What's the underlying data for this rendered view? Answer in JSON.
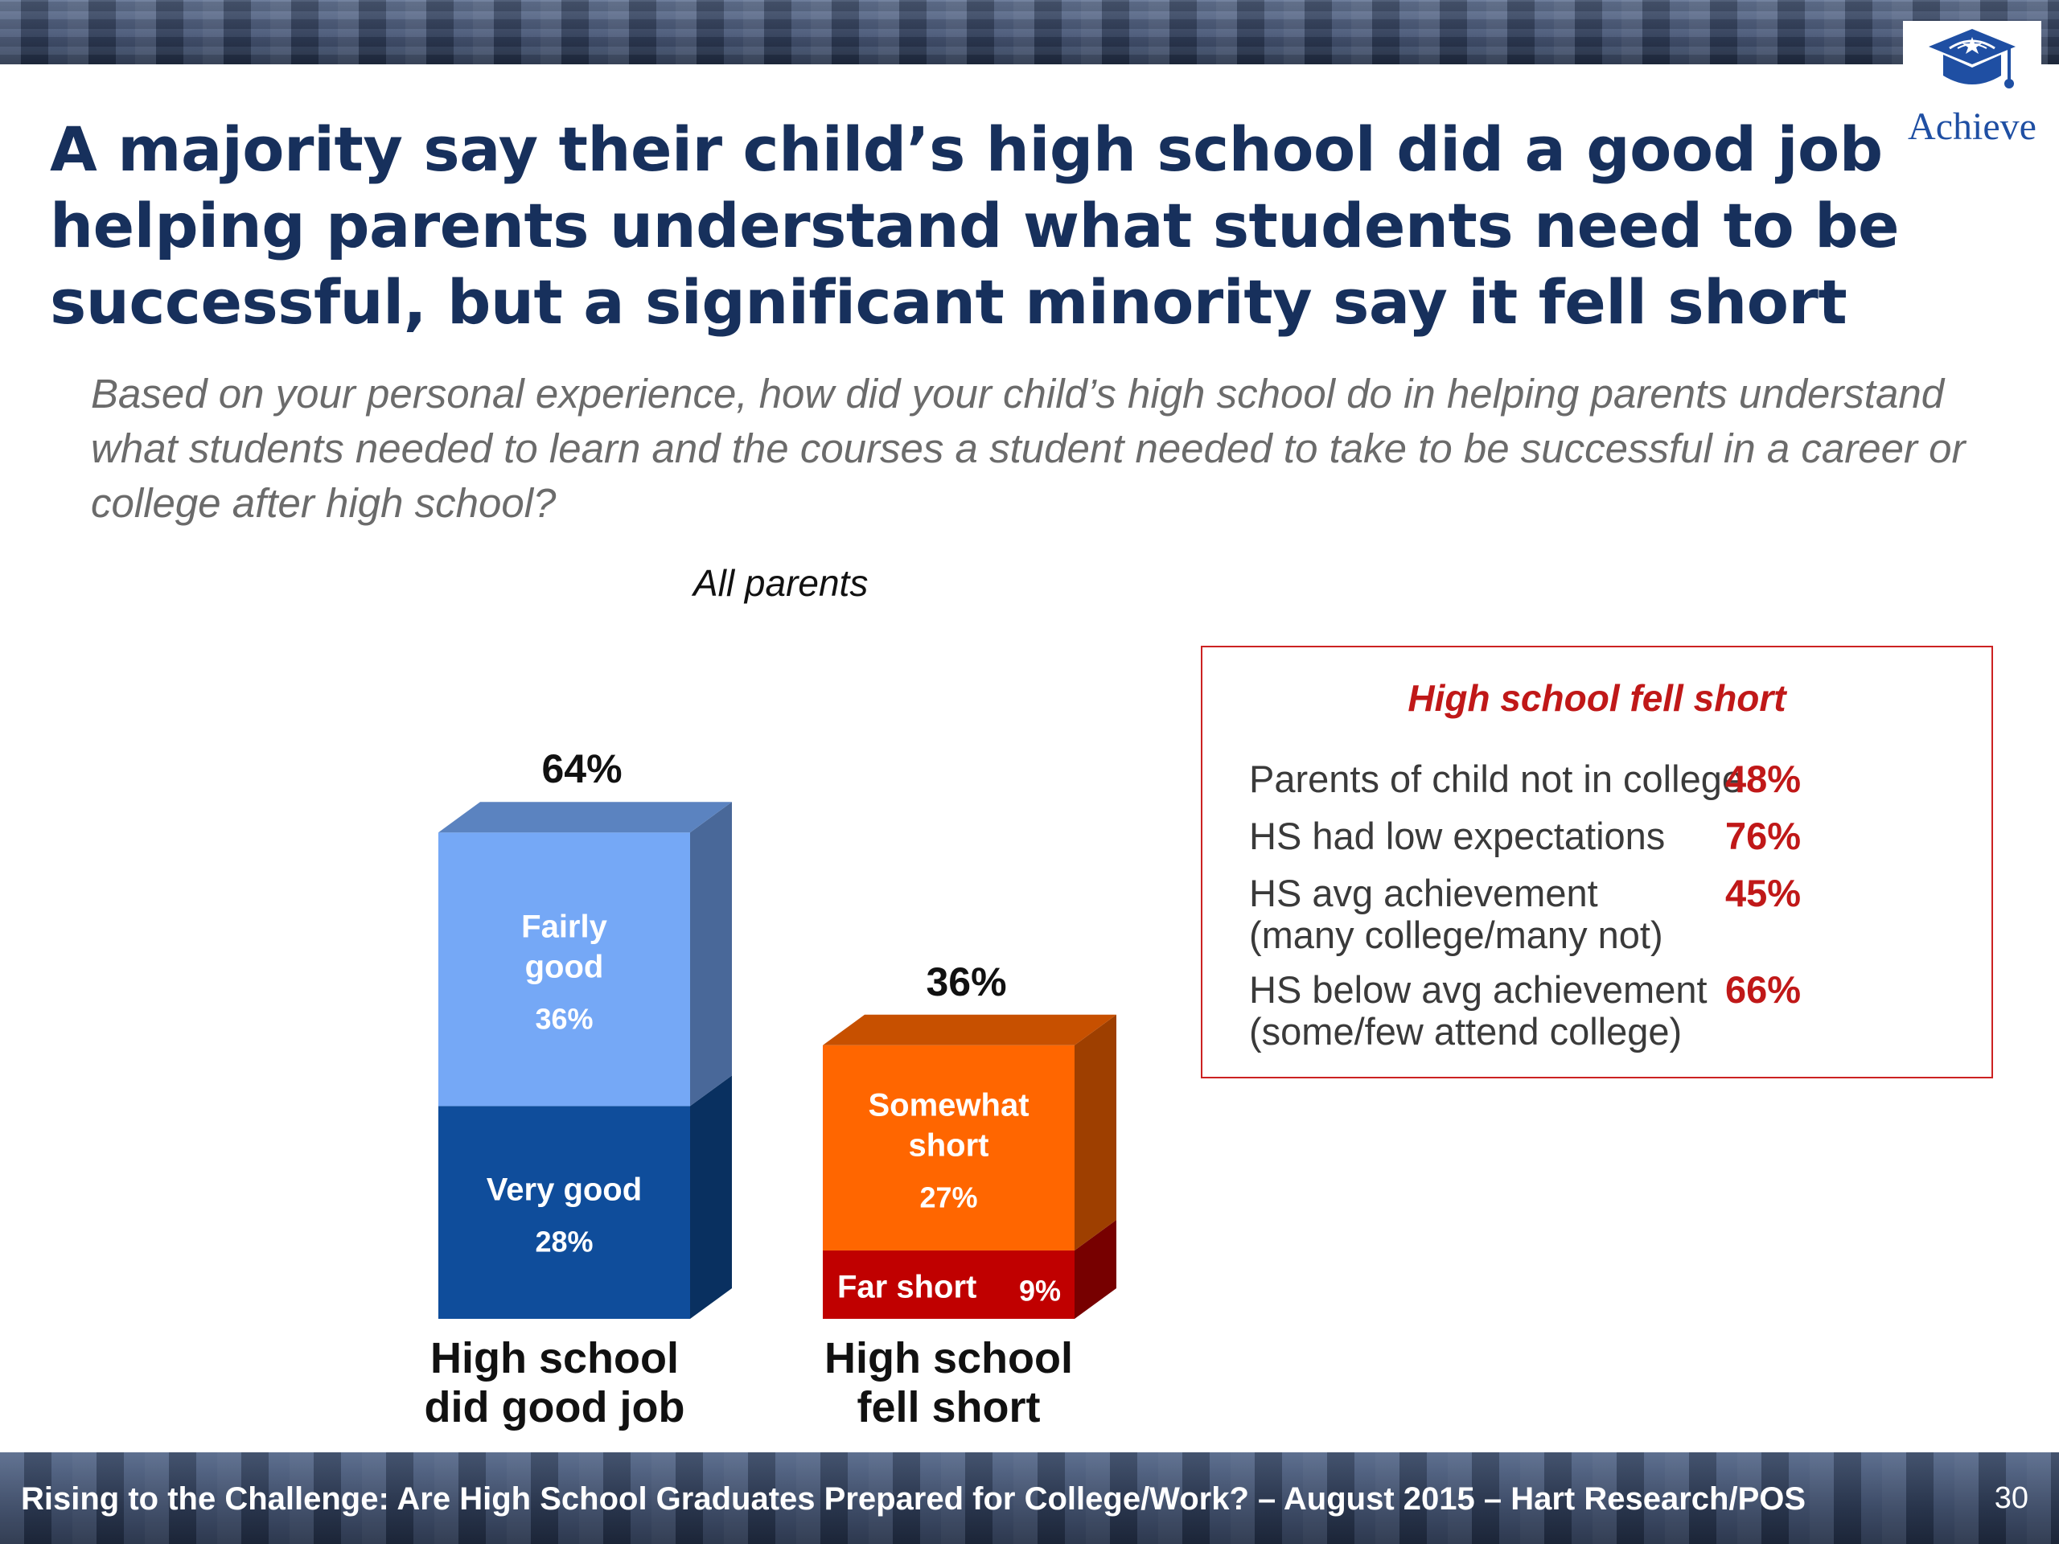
{
  "logo": {
    "text": "Achieve"
  },
  "title": "A majority say their child’s high school did a good job helping parents understand what students need to be successful, but a significant minority say it fell short",
  "question": "Based on your personal experience, how did your child’s high school do in helping parents understand what students needed to learn and the courses a student needed to take to be successful in a career or college after high school?",
  "subgroup": "All parents",
  "chart_data": {
    "type": "bar",
    "stacked": true,
    "categories": [
      "High school did good job",
      "High school fell short"
    ],
    "totals": [
      "64%",
      "36%"
    ],
    "total_values": [
      64,
      36
    ],
    "segments": [
      {
        "category": "High school did good job",
        "label": "Very good",
        "value": 28,
        "display": "28%",
        "color": "#0f4d9b"
      },
      {
        "category": "High school did good job",
        "label": "Fairly good",
        "value": 36,
        "display": "36%",
        "color": "#75a8f6"
      },
      {
        "category": "High school fell short",
        "label": "Far short",
        "value": 9,
        "display": "9%",
        "color": "#c00000"
      },
      {
        "category": "High school fell short",
        "label": "Somewhat short",
        "value": 27,
        "display": "27%",
        "color": "#ff6600"
      }
    ],
    "ylim": [
      0,
      100
    ],
    "grid": false,
    "legend": "none"
  },
  "callout": {
    "title": "High school fell short",
    "rows": [
      {
        "label": "Parents of child not in college",
        "value": "48%"
      },
      {
        "label": "HS had low expectations",
        "value": "76%"
      },
      {
        "label": "HS avg achievement\n(many college/many not)",
        "value": "45%"
      },
      {
        "label": "HS below avg achievement\n(some/few attend college)",
        "value": "66%"
      }
    ]
  },
  "footer": {
    "text": "Rising to the Challenge:  Are High School Graduates Prepared for College/Work? – August 2015 – Hart Research/POS",
    "page_number": "30"
  }
}
